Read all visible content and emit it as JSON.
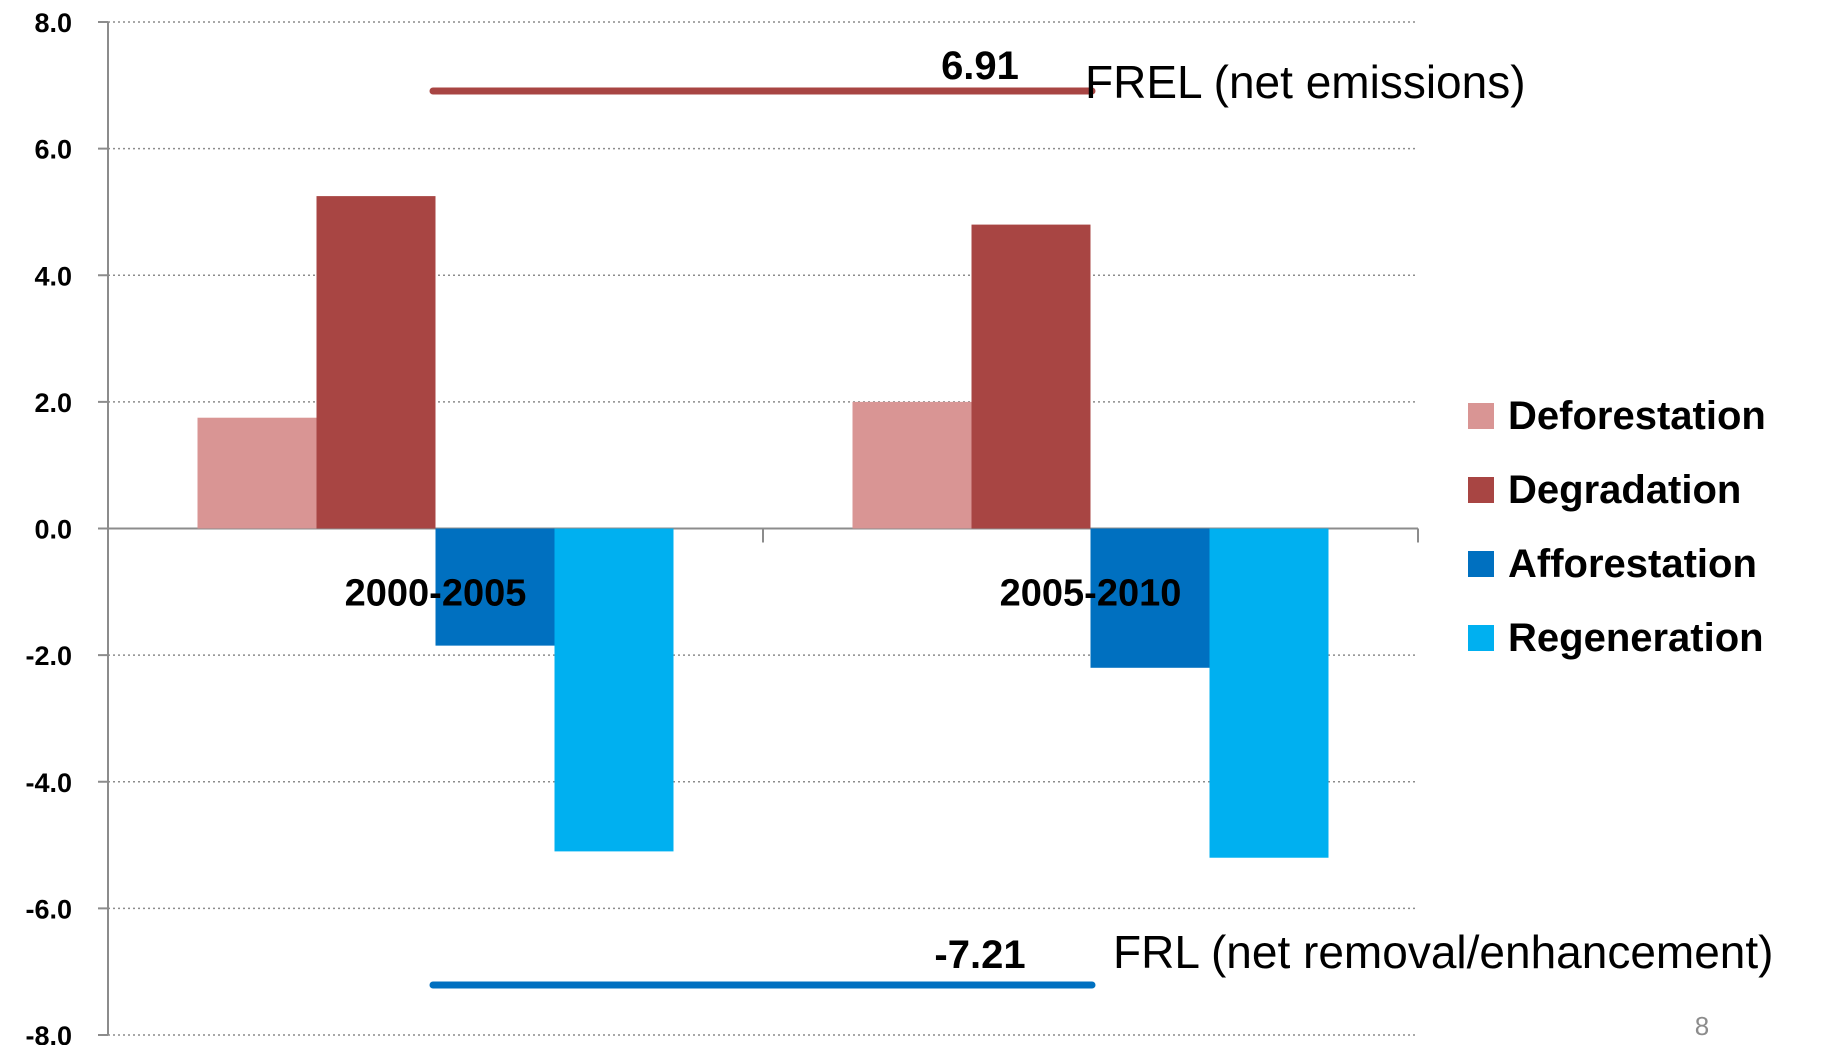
{
  "chart_data": {
    "type": "bar",
    "categories": [
      "2000-2005",
      "2005-2010"
    ],
    "series": [
      {
        "name": "Deforestation",
        "values": [
          1.75,
          2.0
        ],
        "color": "#d99594"
      },
      {
        "name": "Degradation",
        "values": [
          5.25,
          4.8
        ],
        "color": "#a84543"
      },
      {
        "name": "Afforestation",
        "values": [
          -1.85,
          -2.2
        ],
        "color": "#0070c0"
      },
      {
        "name": "Regeneration",
        "values": [
          -5.1,
          -5.2
        ],
        "color": "#00b0f0"
      }
    ],
    "y_ticks": [
      "8.0",
      "6.0",
      "4.0",
      "2.0",
      "0.0",
      "-2.0",
      "-4.0",
      "-6.0",
      "-8.0"
    ],
    "ylim": [
      -8,
      8
    ],
    "grid": "dotted horizontal",
    "legend": "right",
    "reference_lines": [
      {
        "value": 6.91,
        "value_label": "6.91",
        "label": "FREL (net emissions)",
        "color": "#a84543"
      },
      {
        "value": -7.21,
        "value_label": "-7.21",
        "label": "FRL (net removal/enhancement)",
        "color": "#0070c0"
      }
    ]
  },
  "page_number": "8"
}
